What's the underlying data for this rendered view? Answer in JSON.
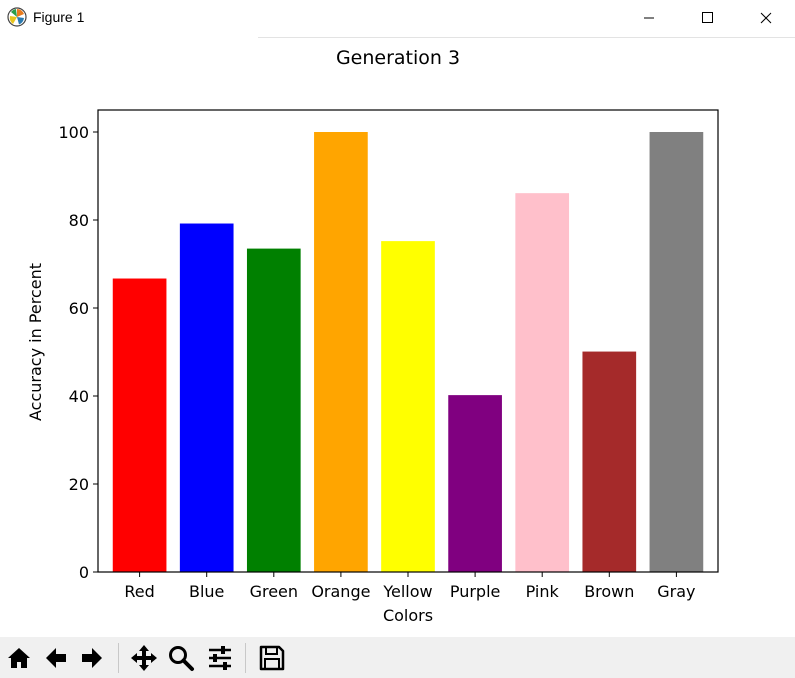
{
  "window": {
    "title": "Figure 1"
  },
  "toolbar": {
    "tools": [
      "home-icon",
      "back-arrow-icon",
      "forward-arrow-icon",
      "pan-icon",
      "zoom-icon",
      "configure-subplots-icon",
      "save-icon"
    ]
  },
  "chart_data": {
    "type": "bar",
    "title": "Generation 3",
    "xlabel": "Colors",
    "ylabel": "Accuracy in Percent",
    "categories": [
      "Red",
      "Blue",
      "Green",
      "Orange",
      "Yellow",
      "Purple",
      "Pink",
      "Brown",
      "Gray"
    ],
    "values": [
      66.7,
      79.2,
      73.5,
      100,
      75.2,
      40.2,
      86.1,
      50.1,
      100
    ],
    "colors": [
      "#ff0000",
      "#0000ff",
      "#008000",
      "#ffa500",
      "#ffff00",
      "#800080",
      "#ffc0cb",
      "#a52a2a",
      "#808080"
    ],
    "yticks": [
      0,
      20,
      40,
      60,
      80,
      100
    ],
    "ytick_labels": [
      "0",
      "20",
      "40",
      "60",
      "80",
      "100"
    ],
    "ylim": [
      0,
      105
    ],
    "grid": false
  }
}
